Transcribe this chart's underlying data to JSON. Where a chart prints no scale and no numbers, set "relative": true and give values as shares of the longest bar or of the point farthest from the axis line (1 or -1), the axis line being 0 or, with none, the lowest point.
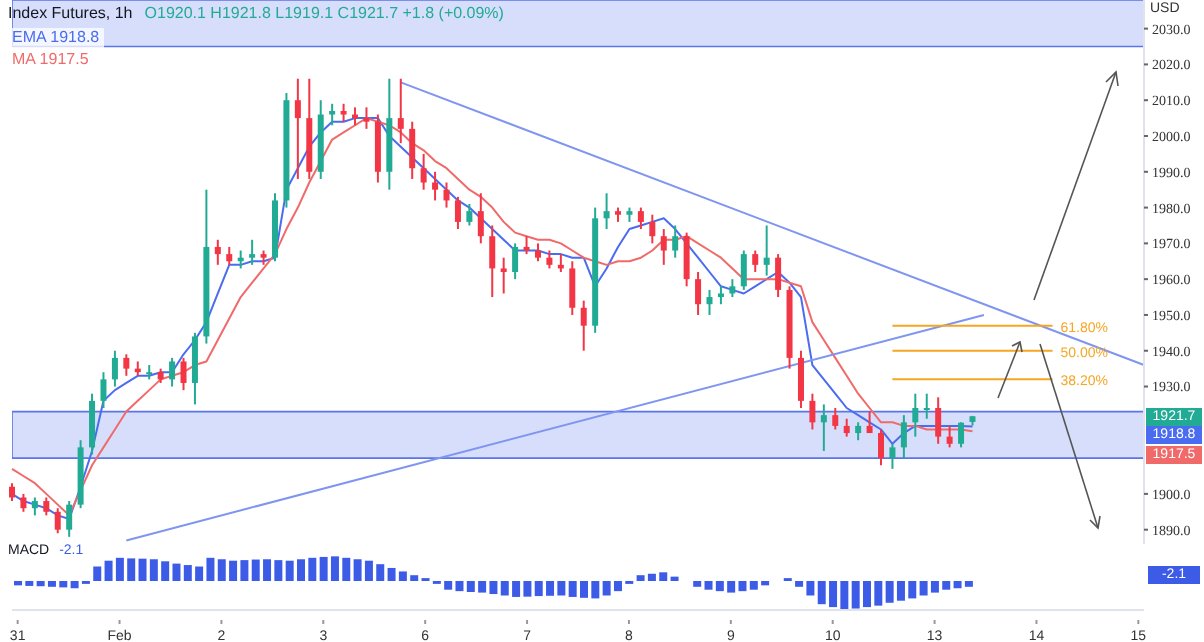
{
  "chart_data": [
    {
      "type": "candlestick",
      "title": "Index Futures, 1h",
      "subtitle": "O1920.1 H1921.8 L1919.1 C1921.7 +1.8 (+0.09%)",
      "ylabel": "USD",
      "categories": [
        null,
        null,
        null,
        null,
        null,
        null,
        null,
        null,
        null,
        null,
        null,
        null,
        null,
        null,
        null,
        null,
        null,
        null,
        null,
        null,
        null,
        null,
        null,
        null,
        null,
        null,
        null,
        null,
        null,
        null,
        null,
        null,
        null,
        null,
        null,
        null,
        null,
        null,
        null,
        null,
        null,
        null,
        null,
        null,
        null,
        null,
        null,
        null,
        null,
        null,
        null,
        null,
        null,
        null,
        null,
        null,
        null,
        null,
        null,
        null,
        null,
        null,
        null,
        null,
        null,
        null,
        null,
        null,
        null,
        null,
        null,
        null,
        null,
        null,
        null,
        null,
        null,
        null,
        null,
        null,
        null,
        null,
        null,
        null,
        null,
        null,
        null,
        null,
        null,
        null,
        null,
        null,
        null,
        null,
        null,
        null,
        null,
        null,
        null,
        null
      ],
      "ohlc": [
        [
          1902,
          1903,
          1898,
          1899
        ],
        [
          1899,
          1900,
          1895,
          1896
        ],
        [
          1896,
          1899,
          1894,
          1898
        ],
        [
          1898,
          1899,
          1894,
          1895
        ],
        [
          1895,
          1896,
          1889,
          1890
        ],
        [
          1890,
          1898,
          1888,
          1897
        ],
        [
          1897,
          1915,
          1896,
          1913
        ],
        [
          1913,
          1928,
          1911,
          1926
        ],
        [
          1926,
          1934,
          1924,
          1932
        ],
        [
          1932,
          1940,
          1930,
          1938
        ],
        [
          1938,
          1939,
          1933,
          1935
        ],
        [
          1935,
          1937,
          1933,
          1934
        ],
        [
          1934,
          1936,
          1932,
          1934
        ],
        [
          1934,
          1935,
          1931,
          1932
        ],
        [
          1932,
          1938,
          1930,
          1937
        ],
        [
          1937,
          1938,
          1929,
          1931
        ],
        [
          1931,
          1945,
          1925,
          1944
        ],
        [
          1944,
          1985,
          1942,
          1969
        ],
        [
          1969,
          1971,
          1964,
          1967
        ],
        [
          1967,
          1969,
          1964,
          1965
        ],
        [
          1965,
          1968,
          1963,
          1966
        ],
        [
          1966,
          1971,
          1964,
          1967
        ],
        [
          1967,
          1968,
          1964,
          1966
        ],
        [
          1966,
          1984,
          1965,
          1982
        ],
        [
          1982,
          2012,
          1980,
          2010
        ],
        [
          2010,
          2016,
          1988,
          2005
        ],
        [
          2005,
          2016,
          1988,
          1990
        ],
        [
          1990,
          2010,
          1988,
          2006
        ],
        [
          2006,
          2009,
          2003,
          2007
        ],
        [
          2007,
          2009,
          2004,
          2006
        ],
        [
          2006,
          2008,
          2003,
          2005
        ],
        [
          2005,
          2008,
          2002,
          2004
        ],
        [
          2004,
          2006,
          1987,
          1990
        ],
        [
          1990,
          2016,
          1985,
          2005
        ],
        [
          2005,
          2016,
          1998,
          2002
        ],
        [
          2002,
          2004,
          1988,
          1991
        ],
        [
          1991,
          1995,
          1985,
          1987
        ],
        [
          1987,
          1990,
          1982,
          1985
        ],
        [
          1985,
          1987,
          1980,
          1982
        ],
        [
          1982,
          1983,
          1974,
          1976
        ],
        [
          1976,
          1981,
          1975,
          1979
        ],
        [
          1979,
          1984,
          1970,
          1972
        ],
        [
          1972,
          1975,
          1955,
          1963
        ],
        [
          1963,
          1966,
          1956,
          1962
        ],
        [
          1962,
          1970,
          1960,
          1969
        ],
        [
          1969,
          1972,
          1967,
          1968
        ],
        [
          1968,
          1970,
          1965,
          1966
        ],
        [
          1966,
          1968,
          1963,
          1964
        ],
        [
          1964,
          1967,
          1962,
          1963
        ],
        [
          1963,
          1965,
          1950,
          1952
        ],
        [
          1952,
          1954,
          1940,
          1947
        ],
        [
          1947,
          1980,
          1945,
          1977
        ],
        [
          1977,
          1984,
          1974,
          1979
        ],
        [
          1979,
          1980,
          1976,
          1978
        ],
        [
          1978,
          1980,
          1976,
          1979
        ],
        [
          1979,
          1980,
          1974,
          1976
        ],
        [
          1976,
          1978,
          1970,
          1972
        ],
        [
          1972,
          1974,
          1964,
          1968
        ],
        [
          1968,
          1975,
          1966,
          1972
        ],
        [
          1972,
          1973,
          1958,
          1960
        ],
        [
          1960,
          1962,
          1950,
          1953
        ],
        [
          1953,
          1957,
          1950,
          1955
        ],
        [
          1955,
          1958,
          1953,
          1956
        ],
        [
          1956,
          1960,
          1955,
          1958
        ],
        [
          1958,
          1968,
          1957,
          1967
        ],
        [
          1967,
          1968,
          1962,
          1964
        ],
        [
          1964,
          1975,
          1961,
          1966
        ],
        [
          1966,
          1967,
          1955,
          1957
        ],
        [
          1957,
          1958,
          1935,
          1938
        ],
        [
          1938,
          1940,
          1924,
          1926
        ],
        [
          1926,
          1928,
          1918,
          1920
        ],
        [
          1920,
          1925,
          1912,
          1922
        ],
        [
          1922,
          1924,
          1918,
          1919
        ],
        [
          1919,
          1921,
          1916,
          1917
        ],
        [
          1917,
          1920,
          1915,
          1919
        ],
        [
          1919,
          1923,
          1917,
          1917
        ],
        [
          1917,
          1918,
          1908,
          1910
        ],
        [
          1910,
          1914,
          1907,
          1913
        ],
        [
          1913,
          1922,
          1910,
          1920
        ],
        [
          1920,
          1928,
          1916,
          1924
        ],
        [
          1924,
          1928,
          1921,
          1924
        ],
        [
          1924,
          1927,
          1914,
          1916
        ],
        [
          1916,
          1919,
          1913,
          1914
        ],
        [
          1914,
          1920,
          1913,
          1919.9
        ],
        [
          1920.1,
          1921.8,
          1919.1,
          1921.7
        ],
        null,
        null,
        null,
        null,
        null,
        null,
        null,
        null,
        null,
        null,
        null,
        null,
        null,
        null,
        null
      ],
      "series": [
        {
          "type": "line",
          "name": "EMA",
          "color": "#4a6cf0",
          "values": [
            1900,
            1898,
            1897,
            1896,
            1894,
            1893,
            1902,
            1912,
            1926,
            1929,
            1931,
            1933,
            1933,
            1934,
            1934,
            1939,
            1943,
            1948,
            1956,
            1964,
            1964,
            1965,
            1965,
            1966,
            1985,
            1991,
            1997,
            2001,
            2004,
            2004,
            2005,
            2005,
            2005,
            2000,
            1997,
            1994,
            1991,
            1988,
            1985,
            1982,
            1980,
            1977,
            1974,
            1971,
            1968,
            1968,
            1968,
            1967,
            1967,
            1966,
            1966,
            1958,
            1963,
            1969,
            1974,
            1975,
            1976,
            1977,
            1974,
            1970,
            1966,
            1962,
            1958,
            1957,
            1956,
            1958,
            1960,
            1962,
            1959,
            1955,
            1936,
            1932,
            1928,
            1924,
            1922,
            1920,
            1918,
            1914,
            1917,
            1919,
            1919,
            1919,
            1919,
            1919,
            1918.8,
            null,
            null,
            null,
            null,
            null,
            null,
            null,
            null,
            null,
            null,
            null,
            null,
            null,
            null,
            null
          ]
        },
        {
          "type": "line",
          "name": "MA",
          "color": "#f06a6a",
          "values": [
            1907,
            1905,
            1903,
            1900,
            1897,
            1894,
            1901,
            1908,
            1913,
            1918,
            1923,
            1926,
            1929,
            1932,
            1933,
            1934,
            1936,
            1937,
            1943,
            1949,
            1955,
            1959,
            1963,
            1967,
            1974,
            1980,
            1987,
            1993,
            1999,
            2001,
            2003,
            2005,
            2004,
            2003,
            2001,
            1998,
            1996,
            1993,
            1991,
            1988,
            1985,
            1983,
            1980,
            1976,
            1973,
            1972,
            1971,
            1971,
            1970,
            1968,
            1966,
            1965,
            1964,
            1965,
            1965,
            1966,
            1968,
            1971,
            1971,
            1972,
            1970,
            1968,
            1966,
            1963,
            1960,
            1960,
            1960,
            1960,
            1959,
            1958,
            1948,
            1943,
            1938,
            1933,
            1928,
            1924,
            1920,
            1920,
            1919,
            1919,
            1918,
            1918,
            1918,
            1918,
            1917.5,
            null,
            null,
            null,
            null,
            null,
            null,
            null,
            null,
            null,
            null,
            null,
            null,
            null,
            null,
            null
          ]
        },
        {
          "type": "line",
          "color": "#7f95f0",
          "values": [
            null,
            null,
            null,
            null,
            null,
            null,
            null,
            null,
            null,
            null,
            null,
            null,
            null,
            null,
            null,
            null,
            null,
            null,
            null,
            null,
            null,
            null,
            null,
            null,
            null,
            null,
            null,
            null,
            null,
            null,
            null,
            null,
            null,
            null,
            2015,
            null,
            null,
            null,
            null,
            null,
            null,
            null,
            null,
            null,
            null,
            null,
            null,
            null,
            null,
            null,
            null,
            null,
            null,
            null,
            null,
            null,
            null,
            null,
            null,
            null,
            null,
            null,
            null,
            null,
            null,
            null,
            null,
            null,
            null,
            null,
            null,
            null,
            null,
            null,
            null,
            null,
            null,
            null,
            null,
            null,
            null,
            null,
            null,
            null,
            null,
            null,
            null,
            null,
            null,
            null,
            null,
            null,
            null,
            null,
            null,
            null,
            null,
            null,
            null,
            1936
          ]
        },
        {
          "type": "line",
          "color": "#7f95f0",
          "values": [
            null,
            null,
            null,
            null,
            null,
            null,
            null,
            null,
            null,
            null,
            1887,
            null,
            null,
            null,
            null,
            null,
            null,
            null,
            null,
            null,
            null,
            null,
            null,
            null,
            null,
            null,
            null,
            null,
            null,
            null,
            null,
            null,
            null,
            null,
            null,
            null,
            null,
            null,
            null,
            null,
            null,
            null,
            null,
            null,
            null,
            null,
            null,
            null,
            null,
            null,
            null,
            null,
            null,
            null,
            null,
            null,
            null,
            null,
            null,
            null,
            null,
            null,
            null,
            null,
            null,
            null,
            null,
            null,
            null,
            null,
            null,
            null,
            null,
            null,
            null,
            null,
            null,
            null,
            null,
            null,
            null,
            null,
            null,
            null,
            null,
            1950,
            null,
            null,
            null,
            null,
            null,
            null,
            null,
            null,
            null,
            null,
            null,
            null,
            null,
            null
          ]
        },
        {
          "type": "line",
          "name": "61.80%",
          "color": "#f5a623",
          "values": [
            null,
            null,
            null,
            null,
            null,
            null,
            null,
            null,
            null,
            null,
            null,
            null,
            null,
            null,
            null,
            null,
            null,
            null,
            null,
            null,
            null,
            null,
            null,
            null,
            null,
            null,
            null,
            null,
            null,
            null,
            null,
            null,
            null,
            null,
            null,
            null,
            null,
            null,
            null,
            null,
            null,
            null,
            null,
            null,
            null,
            null,
            null,
            null,
            null,
            null,
            null,
            null,
            null,
            null,
            null,
            null,
            null,
            null,
            null,
            null,
            null,
            null,
            null,
            null,
            null,
            null,
            null,
            null,
            null,
            null,
            null,
            null,
            null,
            null,
            null,
            null,
            null,
            1947,
            null,
            null,
            null,
            null,
            null,
            null,
            null,
            null,
            null,
            null,
            null,
            null,
            null,
            1947,
            null,
            null,
            null,
            null,
            null,
            null,
            null,
            null
          ]
        },
        {
          "type": "line",
          "name": "50.00%",
          "color": "#f5a623",
          "values": [
            null,
            null,
            null,
            null,
            null,
            null,
            null,
            null,
            null,
            null,
            null,
            null,
            null,
            null,
            null,
            null,
            null,
            null,
            null,
            null,
            null,
            null,
            null,
            null,
            null,
            null,
            null,
            null,
            null,
            null,
            null,
            null,
            null,
            null,
            null,
            null,
            null,
            null,
            null,
            null,
            null,
            null,
            null,
            null,
            null,
            null,
            null,
            null,
            null,
            null,
            null,
            null,
            null,
            null,
            null,
            null,
            null,
            null,
            null,
            null,
            null,
            null,
            null,
            null,
            null,
            null,
            null,
            null,
            null,
            null,
            null,
            null,
            null,
            null,
            null,
            null,
            null,
            1940,
            null,
            null,
            null,
            null,
            null,
            null,
            null,
            null,
            null,
            null,
            null,
            null,
            null,
            1940,
            null,
            null,
            null,
            null,
            null,
            null,
            null,
            null
          ]
        },
        {
          "type": "line",
          "name": "38.20%",
          "color": "#f5a623",
          "values": [
            null,
            null,
            null,
            null,
            null,
            null,
            null,
            null,
            null,
            null,
            null,
            null,
            null,
            null,
            null,
            null,
            null,
            null,
            null,
            null,
            null,
            null,
            null,
            null,
            null,
            null,
            null,
            null,
            null,
            null,
            null,
            null,
            null,
            null,
            null,
            null,
            null,
            null,
            null,
            null,
            null,
            null,
            null,
            null,
            null,
            null,
            null,
            null,
            null,
            null,
            null,
            null,
            null,
            null,
            null,
            null,
            null,
            null,
            null,
            null,
            null,
            null,
            null,
            null,
            null,
            null,
            null,
            null,
            null,
            null,
            null,
            null,
            null,
            null,
            null,
            null,
            null,
            1932,
            null,
            null,
            null,
            null,
            null,
            null,
            null,
            null,
            null,
            null,
            null,
            null,
            null,
            1932,
            null,
            null,
            null,
            null,
            null,
            null,
            null,
            null
          ]
        }
      ],
      "annotations": [
        {
          "text": "1921.7",
          "y": 1921.7
        },
        "1918.8",
        "1917.5"
      ],
      "bands": [
        {
          "axis": "y",
          "from": 1910,
          "to": 1923,
          "color": "#cdd6fb"
        },
        {
          "axis": "y",
          "from": 2025,
          "to": 2038,
          "color": "#cdd6fb"
        }
      ],
      "ylim": [
        1886,
        2038
      ],
      "yticks": [
        {
          "value": 1890,
          "label": "1890.0"
        },
        {
          "value": 1900,
          "label": "1900.0"
        },
        {
          "value": 1930,
          "label": "1930.0"
        },
        {
          "value": 1940,
          "label": "1940.0"
        },
        {
          "value": 1950,
          "label": "1950.0"
        },
        {
          "value": 1960,
          "label": "1960.0"
        },
        {
          "value": 1970,
          "label": "1970.0"
        },
        {
          "value": 1980,
          "label": "1980.0"
        },
        {
          "value": 1990,
          "label": "1990.0"
        },
        {
          "value": 2000,
          "label": "2000.0"
        },
        {
          "value": 2010,
          "label": "2010.0"
        },
        {
          "value": 2020,
          "label": "2020.0"
        },
        {
          "value": 2030,
          "label": "2030.0"
        }
      ],
      "legend": "top left",
      "tick_labels": "y"
    },
    {
      "type": "bar",
      "title": "MACD",
      "annotations": [
        "-2.1"
      ],
      "relative": true,
      "color": "#3c5ce8",
      "categories": [
        "31",
        null,
        null,
        null,
        null,
        null,
        null,
        null,
        null,
        "Feb",
        null,
        null,
        null,
        null,
        null,
        null,
        null,
        null,
        "2",
        null,
        null,
        null,
        null,
        null,
        null,
        null,
        null,
        "3",
        null,
        null,
        null,
        null,
        null,
        null,
        null,
        null,
        "6",
        null,
        null,
        null,
        null,
        null,
        null,
        null,
        null,
        "7",
        null,
        null,
        null,
        null,
        null,
        null,
        null,
        null,
        "8",
        null,
        null,
        null,
        null,
        null,
        null,
        null,
        null,
        "9",
        null,
        null,
        null,
        null,
        null,
        null,
        null,
        null,
        "10",
        null,
        null,
        null,
        null,
        null,
        null,
        null,
        null,
        "13",
        null,
        null,
        null,
        null,
        null,
        null,
        null,
        null,
        "14",
        null,
        null,
        null,
        null,
        null,
        null,
        null,
        null,
        "15"
      ],
      "values": [
        -0.15,
        -0.17,
        -0.18,
        -0.2,
        -0.22,
        -0.25,
        -0.1,
        0.5,
        0.7,
        0.8,
        0.78,
        0.77,
        0.75,
        0.68,
        0.6,
        0.55,
        0.5,
        0.8,
        0.75,
        0.7,
        0.72,
        0.74,
        0.75,
        0.72,
        0.7,
        0.75,
        0.8,
        0.83,
        0.85,
        0.8,
        0.75,
        0.7,
        0.58,
        0.45,
        0.33,
        0.2,
        0.1,
        -0.1,
        -0.3,
        -0.35,
        -0.38,
        -0.4,
        -0.45,
        -0.5,
        -0.55,
        -0.54,
        -0.52,
        -0.51,
        -0.5,
        -0.55,
        -0.58,
        -0.6,
        -0.5,
        -0.35,
        -0.1,
        0.2,
        0.25,
        0.3,
        0.15,
        0,
        -0.2,
        -0.3,
        -0.35,
        -0.4,
        -0.35,
        -0.3,
        -0.15,
        0,
        0.1,
        -0.2,
        -0.5,
        -0.8,
        -0.9,
        -1,
        -0.95,
        -0.9,
        -0.85,
        -0.75,
        -0.68,
        -0.6,
        -0.5,
        -0.4,
        -0.3,
        -0.25,
        -0.2,
        null,
        null,
        null,
        null,
        null,
        null,
        null,
        null,
        null,
        null,
        null,
        null,
        null,
        null,
        null
      ],
      "tick_labels": "x"
    }
  ]
}
